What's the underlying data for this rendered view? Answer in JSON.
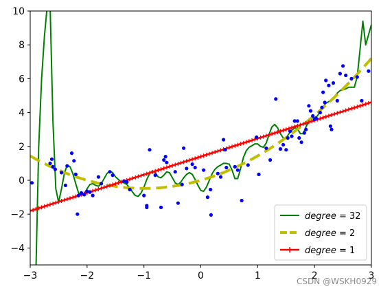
{
  "chart_data": {
    "type": "line",
    "xlim": [
      -3,
      3
    ],
    "ylim": [
      -5,
      10
    ],
    "x_ticks": [
      -3,
      -2,
      -1,
      0,
      1,
      2,
      3
    ],
    "y_ticks": [
      -4,
      -2,
      0,
      2,
      4,
      6,
      8,
      10
    ],
    "grid": false,
    "legend_position": "lower-right",
    "scatter": {
      "color": "#0000ff",
      "points": [
        [
          -2.97,
          -0.15
        ],
        [
          -2.65,
          1.0
        ],
        [
          -2.62,
          1.25
        ],
        [
          -2.6,
          0.8
        ],
        [
          -2.56,
          0.65
        ],
        [
          -2.45,
          0.45
        ],
        [
          -2.38,
          -0.3
        ],
        [
          -2.35,
          0.85
        ],
        [
          -2.27,
          1.6
        ],
        [
          -2.23,
          1.15
        ],
        [
          -2.2,
          0.35
        ],
        [
          -2.17,
          -2.0
        ],
        [
          -2.15,
          -0.9
        ],
        [
          -2.1,
          -0.75
        ],
        [
          -2.05,
          -0.85
        ],
        [
          -2.0,
          -0.65
        ],
        [
          -1.95,
          -0.7
        ],
        [
          -1.9,
          -0.9
        ],
        [
          -1.8,
          0.2
        ],
        [
          -1.75,
          -0.2
        ],
        [
          -1.6,
          0.5
        ],
        [
          -1.55,
          0.3
        ],
        [
          -1.35,
          -0.05
        ],
        [
          -1.3,
          -0.1
        ],
        [
          -1.25,
          -0.55
        ],
        [
          -1.0,
          -0.9
        ],
        [
          -0.95,
          -1.6
        ],
        [
          -0.95,
          -1.5
        ],
        [
          -0.9,
          1.8
        ],
        [
          -0.8,
          0.3
        ],
        [
          -0.7,
          -1.6
        ],
        [
          -0.65,
          1.2
        ],
        [
          -0.62,
          1.4
        ],
        [
          -0.6,
          1.05
        ],
        [
          -0.45,
          0.5
        ],
        [
          -0.4,
          -1.35
        ],
        [
          -0.33,
          -0.25
        ],
        [
          -0.3,
          1.9
        ],
        [
          -0.25,
          0.7
        ],
        [
          -0.15,
          0.95
        ],
        [
          -0.1,
          0.75
        ],
        [
          0.05,
          0.6
        ],
        [
          0.12,
          -1.0
        ],
        [
          0.17,
          -0.55
        ],
        [
          0.18,
          -2.05
        ],
        [
          0.3,
          0.4
        ],
        [
          0.35,
          0.2
        ],
        [
          0.4,
          2.4
        ],
        [
          0.43,
          1.8
        ],
        [
          0.45,
          0.75
        ],
        [
          0.6,
          0.8
        ],
        [
          0.65,
          0.6
        ],
        [
          0.72,
          -1.2
        ],
        [
          0.83,
          0.9
        ],
        [
          0.98,
          2.55
        ],
        [
          1.02,
          0.35
        ],
        [
          1.15,
          1.9
        ],
        [
          1.22,
          1.2
        ],
        [
          1.32,
          4.8
        ],
        [
          1.4,
          1.85
        ],
        [
          1.45,
          2.1
        ],
        [
          1.5,
          1.8
        ],
        [
          1.53,
          2.5
        ],
        [
          1.57,
          2.9
        ],
        [
          1.6,
          2.6
        ],
        [
          1.65,
          3.5
        ],
        [
          1.7,
          3.5
        ],
        [
          1.73,
          2.5
        ],
        [
          1.77,
          2.25
        ],
        [
          1.82,
          2.8
        ],
        [
          1.85,
          3.0
        ],
        [
          1.9,
          4.4
        ],
        [
          1.93,
          4.1
        ],
        [
          1.97,
          3.8
        ],
        [
          2.0,
          3.6
        ],
        [
          2.03,
          3.65
        ],
        [
          2.1,
          4.0
        ],
        [
          2.13,
          4.3
        ],
        [
          2.15,
          5.2
        ],
        [
          2.18,
          4.6
        ],
        [
          2.2,
          5.9
        ],
        [
          2.25,
          5.6
        ],
        [
          2.28,
          3.2
        ],
        [
          2.3,
          3.0
        ],
        [
          2.33,
          5.75
        ],
        [
          2.4,
          4.7
        ],
        [
          2.45,
          6.3
        ],
        [
          2.5,
          6.75
        ],
        [
          2.55,
          6.2
        ],
        [
          2.65,
          6.0
        ],
        [
          2.75,
          6.1
        ],
        [
          2.83,
          4.7
        ],
        [
          2.95,
          6.45
        ]
      ]
    },
    "series": [
      {
        "label_var": "degree",
        "label_val": "32",
        "color": "#008000",
        "style": "solid",
        "x": [
          -2.9,
          -2.88,
          -2.85,
          -2.8,
          -2.75,
          -2.7,
          -2.65,
          -2.6,
          -2.55,
          -2.5,
          -2.45,
          -2.4,
          -2.35,
          -2.3,
          -2.25,
          -2.2,
          -2.15,
          -2.1,
          -2.05,
          -2.0,
          -1.95,
          -1.9,
          -1.85,
          -1.8,
          -1.75,
          -1.7,
          -1.65,
          -1.6,
          -1.55,
          -1.5,
          -1.45,
          -1.4,
          -1.35,
          -1.3,
          -1.25,
          -1.2,
          -1.15,
          -1.1,
          -1.05,
          -1.0,
          -0.95,
          -0.9,
          -0.85,
          -0.8,
          -0.75,
          -0.7,
          -0.65,
          -0.6,
          -0.55,
          -0.5,
          -0.45,
          -0.4,
          -0.35,
          -0.3,
          -0.25,
          -0.2,
          -0.15,
          -0.1,
          -0.05,
          0.0,
          0.05,
          0.1,
          0.15,
          0.2,
          0.25,
          0.3,
          0.35,
          0.4,
          0.45,
          0.5,
          0.55,
          0.6,
          0.65,
          0.7,
          0.75,
          0.8,
          0.85,
          0.9,
          0.95,
          1.0,
          1.05,
          1.1,
          1.15,
          1.2,
          1.25,
          1.3,
          1.35,
          1.4,
          1.45,
          1.5,
          1.55,
          1.6,
          1.65,
          1.7,
          1.75,
          1.8,
          1.85,
          1.9,
          1.95,
          2.0,
          2.05,
          2.1,
          2.15,
          2.2,
          2.25,
          2.3,
          2.35,
          2.4,
          2.45,
          2.5,
          2.55,
          2.6,
          2.65,
          2.7,
          2.75,
          2.8,
          2.85,
          2.9,
          2.95,
          3.0
        ],
        "y": [
          -5.5,
          -2.5,
          2.0,
          6.0,
          8.5,
          10.3,
          10.3,
          3.5,
          -0.5,
          -1.3,
          -0.5,
          0.4,
          0.9,
          0.8,
          0.4,
          -0.2,
          -0.75,
          -0.9,
          -0.8,
          -0.5,
          -0.25,
          -0.2,
          -0.3,
          -0.35,
          -0.2,
          0.1,
          0.4,
          0.55,
          0.45,
          0.2,
          0.05,
          -0.1,
          -0.15,
          -0.25,
          -0.45,
          -0.7,
          -0.9,
          -0.95,
          -0.75,
          -0.4,
          0.05,
          0.4,
          0.55,
          0.45,
          0.2,
          0.15,
          0.3,
          0.5,
          0.45,
          0.15,
          -0.15,
          -0.25,
          -0.1,
          0.15,
          0.35,
          0.45,
          0.35,
          0.05,
          -0.3,
          -0.6,
          -0.65,
          -0.4,
          0.0,
          0.4,
          0.65,
          0.8,
          0.9,
          1.0,
          1.0,
          0.95,
          0.6,
          0.1,
          0.1,
          0.7,
          1.35,
          1.75,
          1.95,
          2.05,
          2.15,
          2.15,
          2.0,
          1.95,
          2.2,
          2.7,
          3.15,
          3.3,
          3.1,
          2.75,
          2.5,
          2.5,
          2.75,
          2.95,
          3.1,
          3.05,
          2.75,
          2.75,
          3.15,
          3.5,
          3.65,
          3.7,
          3.8,
          4.05,
          4.35,
          4.55,
          4.65,
          4.75,
          4.95,
          5.15,
          5.3,
          5.35,
          5.4,
          5.5,
          5.5,
          5.5,
          6.1,
          7.7,
          9.4,
          8.0,
          8.6,
          9.2
        ]
      },
      {
        "label_var": "degree",
        "label_val": "2",
        "color": "#bfbf00",
        "style": "dashed",
        "coefficients": [
          0.0,
          0.96,
          0.48
        ]
      },
      {
        "label_var": "degree",
        "label_val": "1",
        "color": "#ff0000",
        "style": "plus-markers",
        "coefficients": [
          1.4,
          1.07
        ]
      }
    ],
    "legend": [
      {
        "text": "degree = 32",
        "color": "#008000"
      },
      {
        "text": "degree = 2",
        "color": "#bfbf00"
      },
      {
        "text": "degree = 1",
        "color": "#ff0000"
      }
    ]
  },
  "watermark": "CSDN @WSKH0929"
}
